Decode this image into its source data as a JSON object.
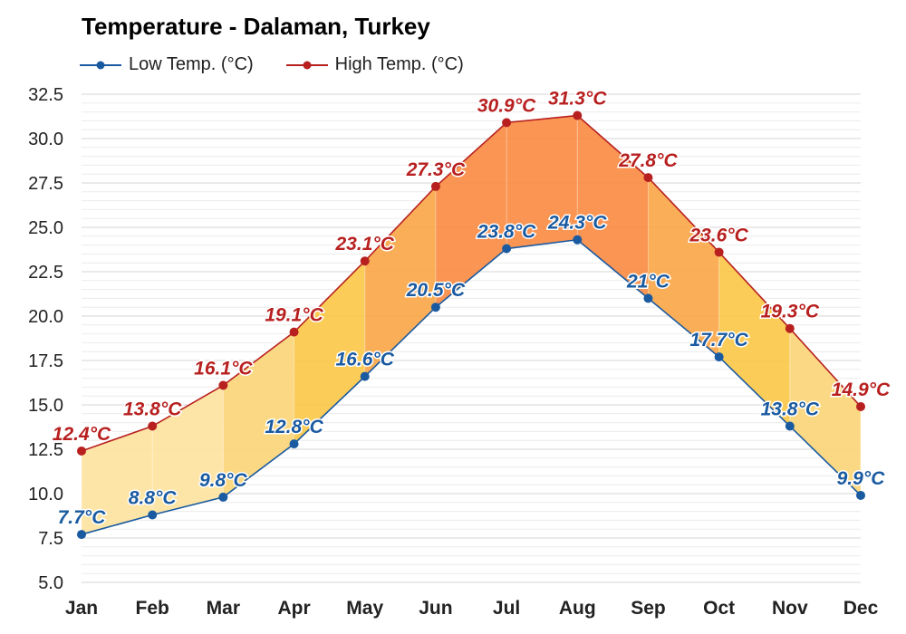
{
  "chart_data": {
    "type": "area",
    "title": "Temperature - Dalaman, Turkey",
    "categories": [
      "Jan",
      "Feb",
      "Mar",
      "Apr",
      "May",
      "Jun",
      "Jul",
      "Aug",
      "Sep",
      "Oct",
      "Nov",
      "Dec"
    ],
    "series": [
      {
        "name": "Low Temp. (°C)",
        "color": "#1a5aa0",
        "values": [
          7.7,
          8.8,
          9.8,
          12.8,
          16.6,
          20.5,
          23.8,
          24.3,
          21,
          17.7,
          13.8,
          9.9
        ],
        "labels": [
          "7.7°C",
          "8.8°C",
          "9.8°C",
          "12.8°C",
          "16.6°C",
          "20.5°C",
          "23.8°C",
          "24.3°C",
          "21°C",
          "17.7°C",
          "13.8°C",
          "9.9°C"
        ]
      },
      {
        "name": "High Temp. (°C)",
        "color": "#b82020",
        "values": [
          12.4,
          13.8,
          16.1,
          19.1,
          23.1,
          27.3,
          30.9,
          31.3,
          27.8,
          23.6,
          19.3,
          14.9
        ],
        "labels": [
          "12.4°C",
          "13.8°C",
          "16.1°C",
          "19.1°C",
          "23.1°C",
          "27.3°C",
          "30.9°C",
          "31.3°C",
          "27.8°C",
          "23.6°C",
          "19.3°C",
          "14.9°C"
        ]
      }
    ],
    "ylim": [
      5,
      32.5
    ],
    "yticks": [
      "5.0",
      "7.5",
      "10.0",
      "12.5",
      "15.0",
      "17.5",
      "20.0",
      "22.5",
      "25.0",
      "27.5",
      "30.0",
      "32.5"
    ],
    "grid": true,
    "legend_position": "top-left",
    "band_colors": [
      "#fde3a0",
      "#fbd67a",
      "#fbc84a",
      "#faa74a",
      "#fa8c44"
    ]
  }
}
